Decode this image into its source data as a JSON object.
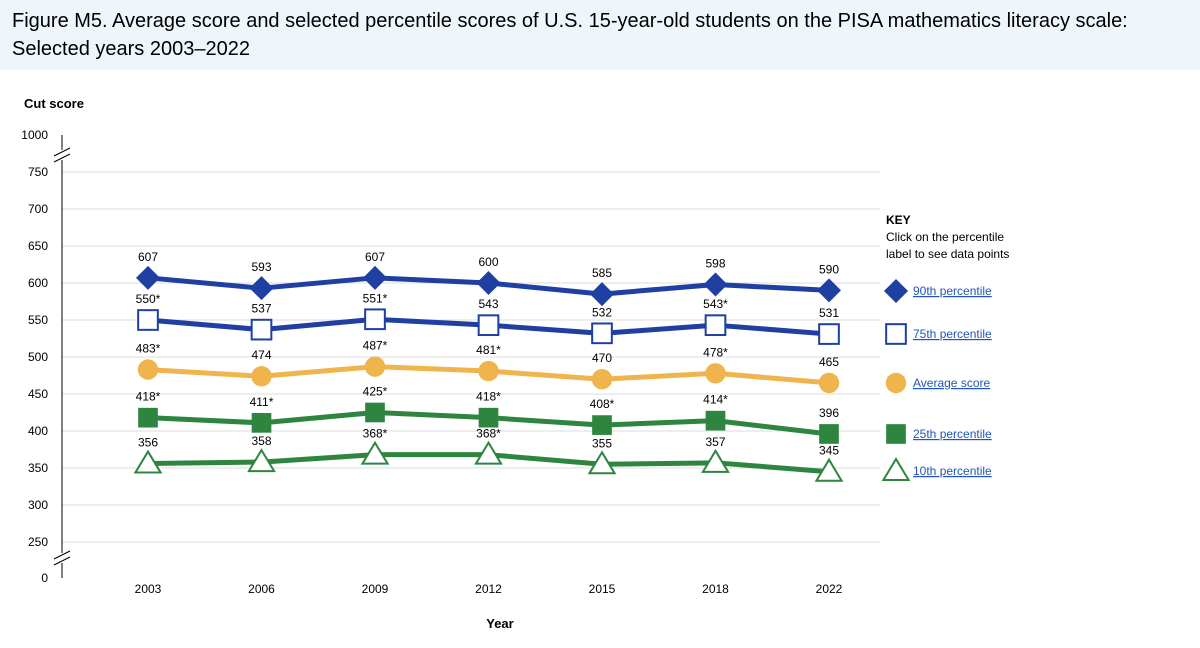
{
  "figure": {
    "title": "Figure M5. Average score and selected percentile scores of U.S. 15-year-old students on the PISA mathematics literacy scale: Selected years 2003–2022"
  },
  "chart_data": {
    "type": "line",
    "title": "Figure M5. Average score and selected percentile scores of U.S. 15-year-old students on the PISA mathematics literacy scale: Selected years 2003–2022",
    "ylabel": "Cut score",
    "xlabel": "Year",
    "categories": [
      "2003",
      "2006",
      "2009",
      "2012",
      "2015",
      "2018",
      "2022"
    ],
    "ylim": [
      250,
      750
    ],
    "yticks": [
      250,
      300,
      350,
      400,
      450,
      500,
      550,
      600,
      650,
      700,
      750
    ],
    "axis_break_labels": {
      "top": "1000",
      "bottom": "0"
    },
    "grid": true,
    "legend_position": "right",
    "key": {
      "title": "KEY",
      "instructions_line1": "Click on the percentile",
      "instructions_line2": "label to see data points"
    },
    "series": [
      {
        "name": "90th percentile",
        "color": "#1f3fa3",
        "marker": "diamond",
        "values": [
          607,
          593,
          607,
          600,
          585,
          598,
          590
        ],
        "labels": [
          "607",
          "593",
          "607",
          "600",
          "585",
          "598",
          "590"
        ]
      },
      {
        "name": "75th percentile",
        "color": "#1f3fa3",
        "marker": "open-square",
        "values": [
          550,
          537,
          551,
          543,
          532,
          543,
          531
        ],
        "labels": [
          "550*",
          "537",
          "551*",
          "543",
          "532",
          "543*",
          "531"
        ]
      },
      {
        "name": "Average score",
        "color": "#f0b44c",
        "marker": "circle",
        "values": [
          483,
          474,
          487,
          481,
          470,
          478,
          465
        ],
        "labels": [
          "483*",
          "474",
          "487*",
          "481*",
          "470",
          "478*",
          "465"
        ]
      },
      {
        "name": "25th percentile",
        "color": "#2e8540",
        "marker": "square",
        "values": [
          418,
          411,
          425,
          418,
          408,
          414,
          396
        ],
        "labels": [
          "418*",
          "411*",
          "425*",
          "418*",
          "408*",
          "414*",
          "396"
        ]
      },
      {
        "name": "10th percentile",
        "color": "#2e8540",
        "marker": "open-triangle",
        "values": [
          356,
          358,
          368,
          368,
          355,
          357,
          345
        ],
        "labels": [
          "356",
          "358",
          "368*",
          "368*",
          "355",
          "357",
          "345"
        ]
      }
    ]
  }
}
